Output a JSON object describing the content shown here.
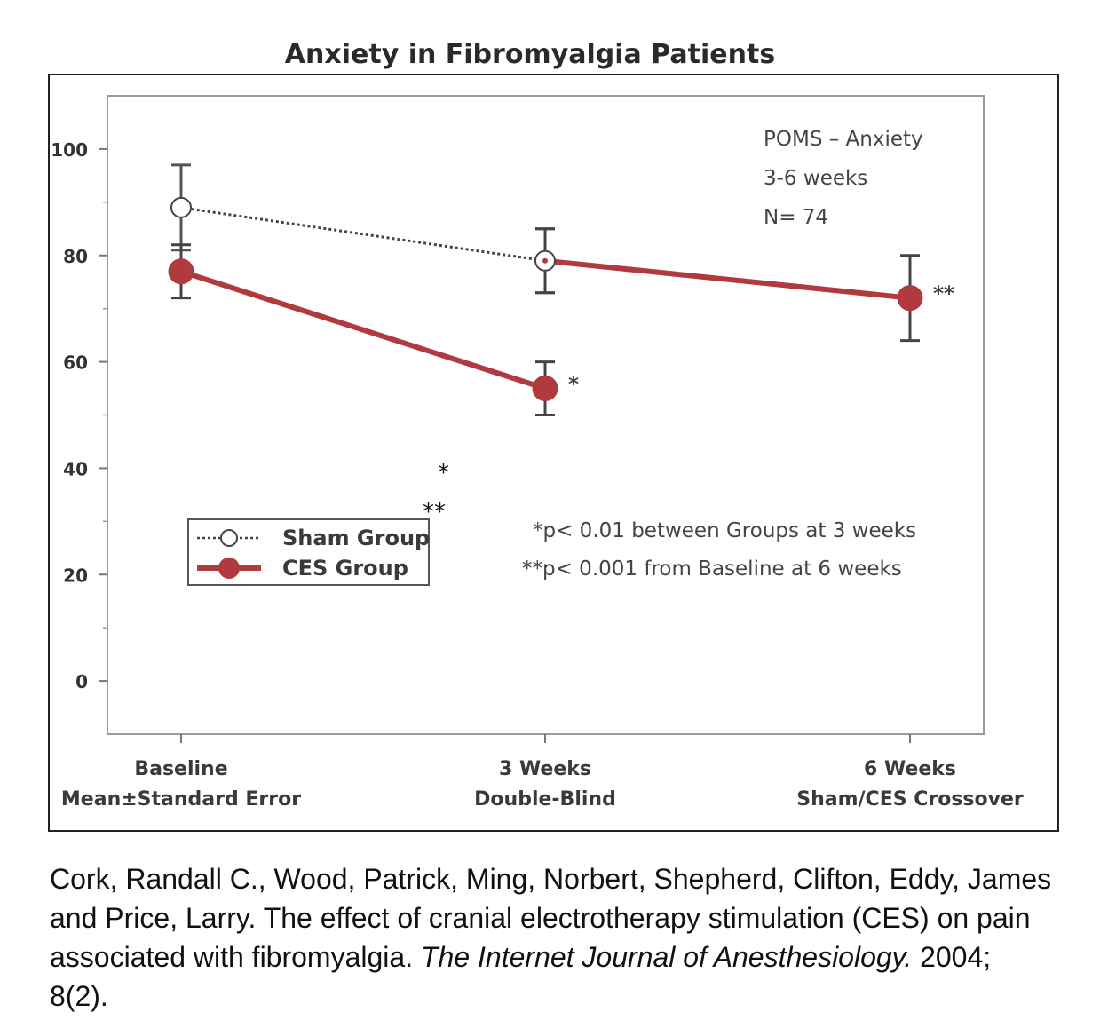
{
  "chart_data": {
    "type": "line",
    "title": "Anxiety in Fibromyalgia Patients",
    "categories": [
      "Baseline",
      "3 Weeks",
      "6 Weeks"
    ],
    "category_sublabels": [
      "Mean±Standard Error",
      "Double-Blind",
      "Sham/CES Crossover"
    ],
    "ylim": [
      -10,
      110
    ],
    "yticks": [
      0,
      20,
      40,
      60,
      80,
      100
    ],
    "grid": false,
    "series": [
      {
        "name": "Sham Group",
        "color": "#444444",
        "style": "dotted-open-circle",
        "points": [
          {
            "category": "Baseline",
            "y": 89,
            "err": 8
          },
          {
            "category": "3 Weeks",
            "y": 79,
            "err": 6
          }
        ]
      },
      {
        "name": "CES Group",
        "color": "#b03a3e",
        "style": "solid-filled-circle",
        "points": [
          {
            "category": "Baseline",
            "y": 77,
            "err": 5
          },
          {
            "category": "3 Weeks",
            "y": 55,
            "err": 5
          }
        ]
      },
      {
        "name": "",
        "color": "#b03a3e",
        "style": "solid-crossover",
        "points": [
          {
            "category": "3 Weeks",
            "y": 79,
            "err": 6
          },
          {
            "category": "6 Weeks",
            "y": 72,
            "err": 8
          }
        ]
      }
    ],
    "point_markers": [
      {
        "category": "3 Weeks",
        "y": 55,
        "text": "*"
      },
      {
        "category": "6 Weeks",
        "y": 72,
        "text": "**"
      }
    ],
    "info_lines": [
      "POMS – Anxiety",
      "3-6 weeks",
      "N= 74"
    ],
    "footnotes": [
      "*p< 0.01 between Groups at 3 weeks",
      "**p< 0.001 from Baseline at 6 weeks"
    ],
    "stray_marks": [
      "*",
      "**"
    ],
    "legend_position": "lower-left"
  },
  "citation": {
    "authors": "Cork, Randall C., Wood, Patrick, Ming, Norbert, Shepherd, Clifton, Eddy, James and Price, Larry.",
    "article": "The effect of cranial electrotherapy stimulation (CES) on pain associated with fibromyalgia.",
    "journal": "The Internet Journal of Anesthesiology.",
    "details": "2004; 8(2)."
  }
}
